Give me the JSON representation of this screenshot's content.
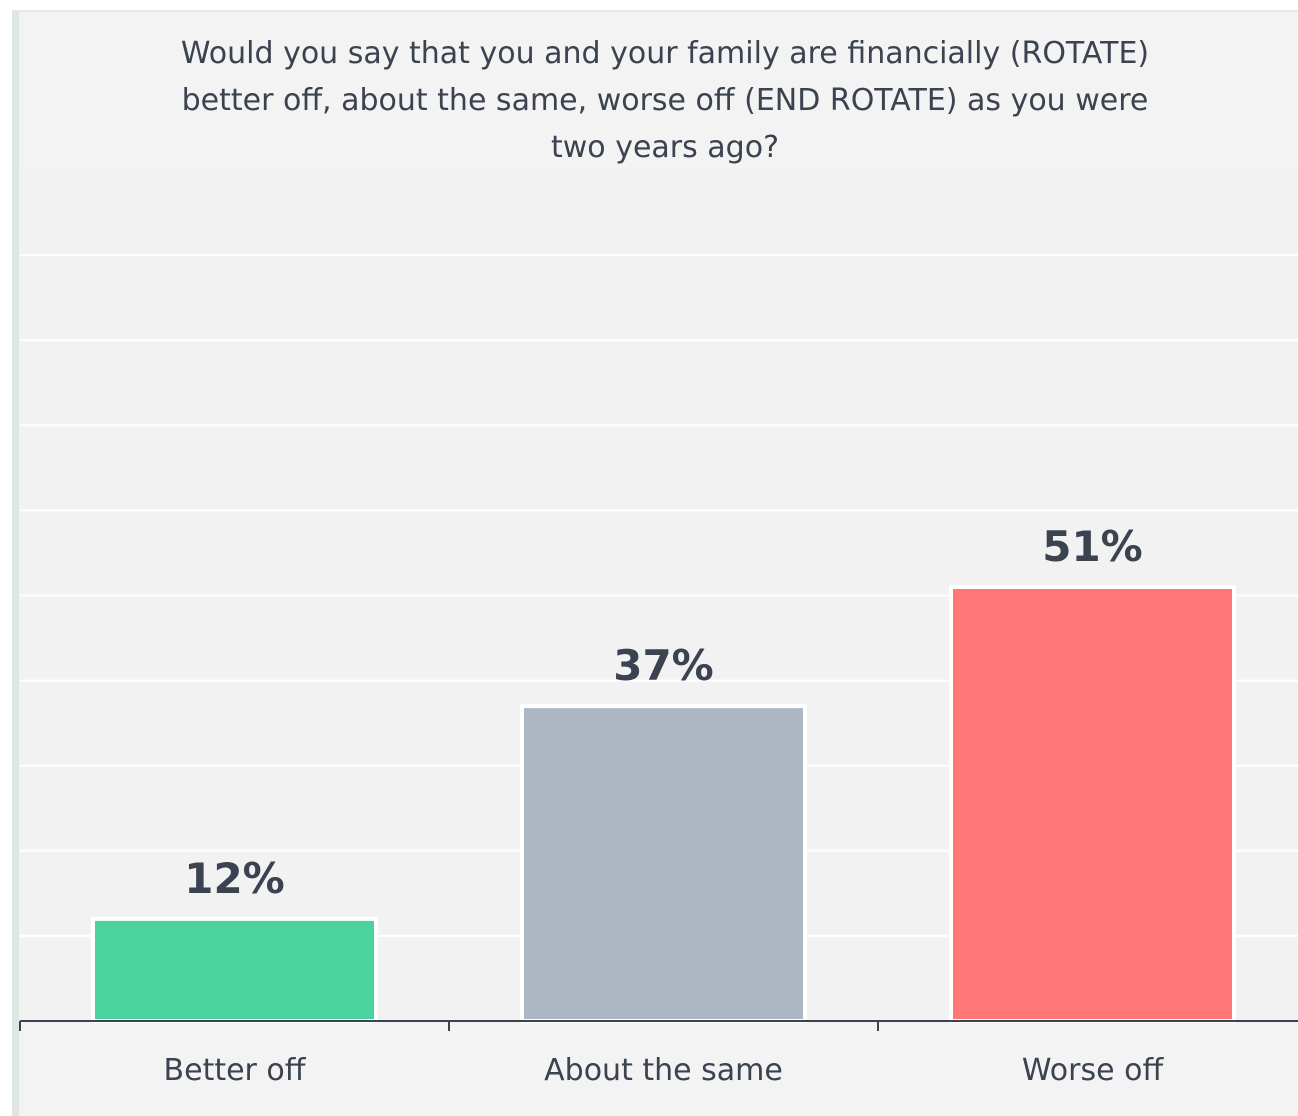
{
  "chart_data": {
    "type": "bar",
    "title": "Would you say that you and your family are financially (ROTATE) better off, about the same, worse off (END ROTATE) as you were two years ago?",
    "categories": [
      "Better off",
      "About the same",
      "Worse off"
    ],
    "values": [
      12,
      37,
      51
    ],
    "value_labels": [
      "12%",
      "37%",
      "51%"
    ],
    "colors": [
      "#4bd29f",
      "#acb7c3",
      "#ff7676"
    ],
    "ylim": [
      0,
      100
    ],
    "grid": true,
    "legend": "none",
    "xlabel": "",
    "ylabel": ""
  }
}
